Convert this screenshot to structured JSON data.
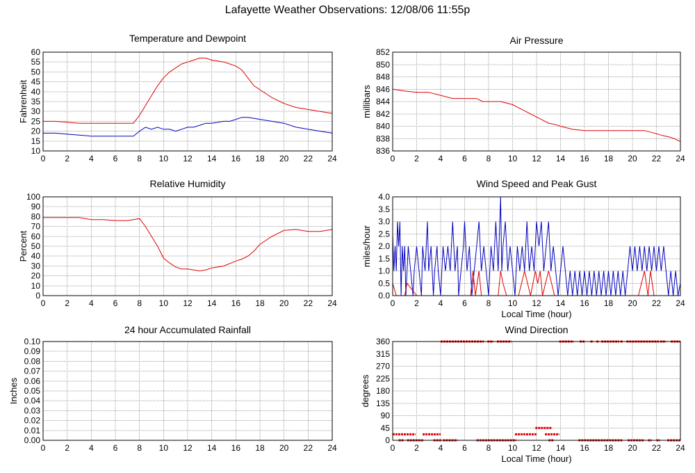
{
  "title": "Lafayette Weather Observations: 12/08/06 11:55p",
  "colors": {
    "red": "#dd0000",
    "blue": "#0000bb",
    "grid": "#a0a0a0"
  },
  "chart_data": [
    {
      "id": "temp",
      "type": "line",
      "title": "Temperature and Dewpoint",
      "xlabel": "",
      "ylabel": "Fahrenheit",
      "xlim": [
        0,
        24
      ],
      "ylim": [
        10,
        60
      ],
      "xticks": [
        0,
        2,
        4,
        6,
        8,
        10,
        12,
        14,
        16,
        18,
        20,
        22,
        24
      ],
      "yticks": [
        10,
        15,
        20,
        25,
        30,
        35,
        40,
        45,
        50,
        55,
        60
      ],
      "grid": true,
      "series": [
        {
          "color": "#dd0000",
          "x": [
            0,
            1,
            2,
            3,
            4,
            5,
            6,
            7,
            7.5,
            8,
            8.5,
            9,
            9.5,
            10,
            10.5,
            11,
            11.5,
            12,
            12.5,
            13,
            13.5,
            14,
            14.5,
            15,
            15.5,
            16,
            16.5,
            17,
            17.5,
            18,
            19,
            20,
            21,
            22,
            23,
            24
          ],
          "y": [
            25,
            25,
            24.5,
            24,
            24,
            24,
            24,
            24,
            24,
            28,
            33,
            38,
            43,
            47,
            50,
            52,
            54,
            55,
            56,
            57,
            57,
            56,
            55.5,
            55,
            54,
            53,
            51,
            47,
            43,
            41,
            37,
            34,
            32,
            31,
            30,
            29
          ]
        },
        {
          "color": "#0000bb",
          "x": [
            0,
            1,
            2,
            3,
            4,
            5,
            6,
            7,
            7.5,
            8,
            8.5,
            9,
            9.5,
            10,
            10.5,
            11,
            11.5,
            12,
            12.5,
            13,
            13.5,
            14,
            14.5,
            15,
            15.5,
            16,
            16.5,
            17,
            17.5,
            18,
            19,
            20,
            21,
            22,
            23,
            24
          ],
          "y": [
            19,
            19,
            18.5,
            18,
            17.5,
            17.5,
            17.5,
            17.5,
            17.5,
            20,
            22,
            21,
            22,
            21,
            21,
            20,
            21,
            22,
            22,
            23,
            24,
            24,
            24.5,
            25,
            25,
            26,
            27,
            27,
            26.5,
            26,
            25,
            24,
            22,
            21,
            20,
            19
          ]
        }
      ]
    },
    {
      "id": "pressure",
      "type": "line",
      "title": "Air Pressure",
      "xlabel": "",
      "ylabel": "millibars",
      "xlim": [
        0,
        24
      ],
      "ylim": [
        836,
        852
      ],
      "xticks": [
        0,
        2,
        4,
        6,
        8,
        10,
        12,
        14,
        16,
        18,
        20,
        22,
        24
      ],
      "yticks": [
        836,
        838,
        840,
        842,
        844,
        846,
        848,
        850,
        852
      ],
      "grid": true,
      "series": [
        {
          "color": "#dd0000",
          "x": [
            0,
            1,
            2,
            3,
            4,
            5,
            6,
            7,
            7.5,
            8,
            9,
            10,
            10.5,
            11,
            11.5,
            12,
            12.5,
            13,
            13.5,
            14,
            15,
            16,
            17,
            18,
            19,
            20,
            21,
            22,
            22.5,
            23,
            23.5,
            24
          ],
          "y": [
            846,
            845.7,
            845.5,
            845.5,
            845,
            844.5,
            844.5,
            844.5,
            844,
            844,
            844,
            843.5,
            843,
            842.5,
            842,
            841.5,
            841,
            840.5,
            840.3,
            840,
            839.5,
            839.3,
            839.3,
            839.3,
            839.3,
            839.3,
            839.3,
            838.8,
            838.5,
            838.3,
            838,
            837.5
          ]
        }
      ]
    },
    {
      "id": "humidity",
      "type": "line",
      "title": "Relative Humidity",
      "xlabel": "",
      "ylabel": "Percent",
      "xlim": [
        0,
        24
      ],
      "ylim": [
        0,
        100
      ],
      "xticks": [
        0,
        2,
        4,
        6,
        8,
        10,
        12,
        14,
        16,
        18,
        20,
        22,
        24
      ],
      "yticks": [
        0,
        10,
        20,
        30,
        40,
        50,
        60,
        70,
        80,
        90,
        100
      ],
      "grid": true,
      "series": [
        {
          "color": "#dd0000",
          "x": [
            0,
            1,
            2,
            3,
            4,
            5,
            6,
            7,
            7.5,
            8,
            8.5,
            9,
            9.5,
            10,
            10.5,
            11,
            11.5,
            12,
            12.5,
            13,
            13.5,
            14,
            15,
            16,
            16.5,
            17,
            17.5,
            18,
            19,
            20,
            21,
            22,
            23,
            24
          ],
          "y": [
            79,
            79,
            79,
            79,
            77,
            77,
            76,
            76,
            77,
            78,
            70,
            60,
            50,
            38,
            33,
            29,
            27,
            27,
            26,
            25,
            26,
            28,
            30,
            35,
            37,
            40,
            45,
            52,
            60,
            66,
            67,
            65,
            65,
            67
          ]
        }
      ]
    },
    {
      "id": "wind",
      "type": "line",
      "title": "Wind Speed and Peak Gust",
      "xlabel": "Local Time (hour)",
      "ylabel": "miles/hour",
      "xlim": [
        0,
        24
      ],
      "ylim": [
        0,
        4
      ],
      "xticks": [
        0,
        2,
        4,
        6,
        8,
        10,
        12,
        14,
        16,
        18,
        20,
        22,
        24
      ],
      "yticks": [
        0.0,
        0.5,
        1.0,
        1.5,
        2.0,
        2.5,
        3.0,
        3.5,
        4.0
      ],
      "ytick_labels": [
        "0.0",
        "0.5",
        "1.0",
        "1.5",
        "2.0",
        "2.5",
        "3.0",
        "3.5",
        "4.0"
      ],
      "grid": true,
      "series": [
        {
          "color": "#0000bb",
          "x": [
            0,
            0.1,
            0.2,
            0.3,
            0.4,
            0.5,
            0.6,
            0.7,
            0.8,
            0.9,
            1.0,
            1.1,
            1.2,
            1.3,
            1.5,
            1.7,
            1.8,
            2.0,
            2.2,
            2.4,
            2.5,
            2.7,
            2.9,
            3.0,
            3.2,
            3.4,
            3.5,
            3.7,
            3.8,
            4.0,
            4.2,
            4.4,
            4.6,
            4.8,
            5.0,
            5.2,
            5.4,
            5.5,
            5.7,
            5.9,
            6.0,
            6.2,
            6.4,
            6.6,
            6.8,
            7.0,
            7.2,
            7.4,
            7.6,
            7.8,
            8.0,
            8.2,
            8.4,
            8.6,
            8.8,
            9.0,
            9.1,
            9.2,
            9.4,
            9.6,
            9.8,
            10.0,
            10.2,
            10.4,
            10.6,
            10.8,
            11.0,
            11.2,
            11.4,
            11.6,
            11.8,
            12.0,
            12.2,
            12.4,
            12.6,
            12.8,
            13.0,
            13.2,
            13.4,
            13.6,
            13.8,
            14.0,
            14.2,
            14.4,
            14.6,
            14.8,
            15.0,
            15.2,
            15.4,
            15.6,
            15.8,
            16.0,
            16.2,
            16.4,
            16.6,
            16.8,
            17.0,
            17.2,
            17.4,
            17.6,
            17.8,
            18.0,
            18.2,
            18.4,
            18.6,
            18.8,
            19.0,
            19.2,
            19.4,
            19.6,
            19.8,
            20.0,
            20.2,
            20.4,
            20.6,
            20.8,
            21.0,
            21.2,
            21.4,
            21.6,
            21.8,
            22.0,
            22.2,
            22.4,
            22.6,
            22.8,
            23.0,
            23.2,
            23.4,
            23.6,
            23.8,
            24.0
          ],
          "y": [
            2.5,
            1,
            2,
            1,
            3,
            2,
            3,
            0,
            2,
            1,
            2,
            0,
            1,
            2,
            1,
            0,
            1,
            2,
            1,
            0,
            2,
            1,
            3,
            1,
            2,
            0,
            1,
            2,
            1,
            0,
            2,
            1,
            2,
            1,
            3,
            1,
            2,
            0,
            1,
            2,
            3,
            1,
            2,
            0,
            1,
            2,
            3,
            1,
            2,
            1,
            0,
            2,
            1,
            3,
            1,
            4,
            1,
            2,
            3,
            1,
            2,
            1,
            0,
            2,
            1,
            2,
            1,
            3,
            1,
            2,
            1,
            3,
            2,
            3,
            1,
            2,
            3,
            1,
            2,
            1,
            0,
            1,
            2,
            1,
            0,
            1,
            0,
            1,
            0,
            1,
            0,
            1,
            0,
            1,
            0,
            1,
            0,
            1,
            0,
            1,
            0,
            1,
            0,
            1,
            0,
            1,
            0,
            1,
            0,
            1,
            2,
            1,
            2,
            1,
            2,
            1,
            2,
            1,
            2,
            1,
            2,
            1,
            2,
            1,
            2,
            1,
            0,
            1,
            0,
            1,
            0,
            0.5
          ]
        },
        {
          "color": "#dd0000",
          "x": [
            0,
            0.3,
            0.5,
            1.0,
            1.2,
            2.0,
            5.0,
            6.5,
            6.7,
            6.9,
            7.2,
            7.4,
            8.0,
            8.8,
            9.0,
            9.2,
            9.5,
            10.5,
            11.0,
            11.5,
            11.9,
            12.1,
            12.3,
            12.5,
            13.0,
            13.5,
            14.0,
            18.0,
            20.5,
            21.0,
            21.3,
            21.5,
            21.8,
            22.0,
            24.0
          ],
          "y": [
            0.5,
            0,
            0,
            0,
            0.5,
            0,
            0,
            0,
            1,
            0,
            1,
            0,
            0,
            0,
            1,
            0.5,
            0,
            0,
            1,
            0,
            1,
            0.5,
            1,
            0,
            1,
            0,
            0,
            0,
            0,
            1,
            0,
            1,
            0,
            0,
            0
          ]
        }
      ]
    },
    {
      "id": "rain",
      "type": "line",
      "title": "24 hour Accumulated Rainfall",
      "xlabel": "",
      "ylabel": "Inches",
      "xlim": [
        0,
        24
      ],
      "ylim": [
        0,
        0.1
      ],
      "xticks": [
        0,
        2,
        4,
        6,
        8,
        10,
        12,
        14,
        16,
        18,
        20,
        22,
        24
      ],
      "yticks": [
        0,
        0.01,
        0.02,
        0.03,
        0.04,
        0.05,
        0.06,
        0.07,
        0.08,
        0.09,
        0.1
      ],
      "ytick_labels": [
        "0.00",
        "0.01",
        "0.02",
        "0.03",
        "0.04",
        "0.05",
        "0.06",
        "0.07",
        "0.08",
        "0.09",
        "0.10"
      ],
      "grid": true,
      "series": [
        {
          "color": "#dd0000",
          "x": [
            0,
            24
          ],
          "y": [
            0,
            0
          ]
        }
      ]
    },
    {
      "id": "direction",
      "type": "scatter",
      "title": "Wind Direction",
      "xlabel": "Local Time (hour)",
      "ylabel": "degrees",
      "xlim": [
        0,
        24
      ],
      "ylim": [
        0,
        360
      ],
      "xticks": [
        0,
        2,
        4,
        6,
        8,
        10,
        12,
        14,
        16,
        18,
        20,
        22,
        24
      ],
      "yticks": [
        0,
        45,
        90,
        135,
        180,
        225,
        270,
        315,
        360
      ],
      "grid": true,
      "segments": [
        {
          "y": 22,
          "x": [
            [
              0.0,
              1.9
            ],
            [
              2.5,
              4.0
            ],
            [
              10.2,
              12.0
            ],
            [
              12.7,
              13.9
            ]
          ]
        },
        {
          "y": 0,
          "x": [
            [
              0.5,
              0.9
            ],
            [
              1.2,
              2.6
            ],
            [
              3.4,
              4.1
            ],
            [
              4.2,
              5.4
            ],
            [
              7.0,
              10.3
            ],
            [
              13.0,
              13.4
            ],
            [
              15.5,
              19.2
            ],
            [
              19.6,
              21.0
            ],
            [
              21.3,
              21.6
            ],
            [
              22.0,
              22.3
            ],
            [
              22.9,
              24.0
            ]
          ]
        },
        {
          "y": 45,
          "x": [
            [
              11.9,
              13.3
            ]
          ]
        },
        {
          "y": 360,
          "x": [
            [
              4.0,
              7.6
            ],
            [
              7.9,
              8.4
            ],
            [
              8.7,
              9.9
            ],
            [
              13.9,
              15.1
            ],
            [
              15.6,
              16.0
            ],
            [
              16.5,
              16.7
            ],
            [
              17.0,
              17.2
            ],
            [
              17.4,
              18.9
            ],
            [
              19.0,
              19.2
            ],
            [
              19.5,
              22.2
            ],
            [
              22.3,
              22.8
            ],
            [
              23.2,
              24.0
            ]
          ]
        }
      ]
    }
  ]
}
